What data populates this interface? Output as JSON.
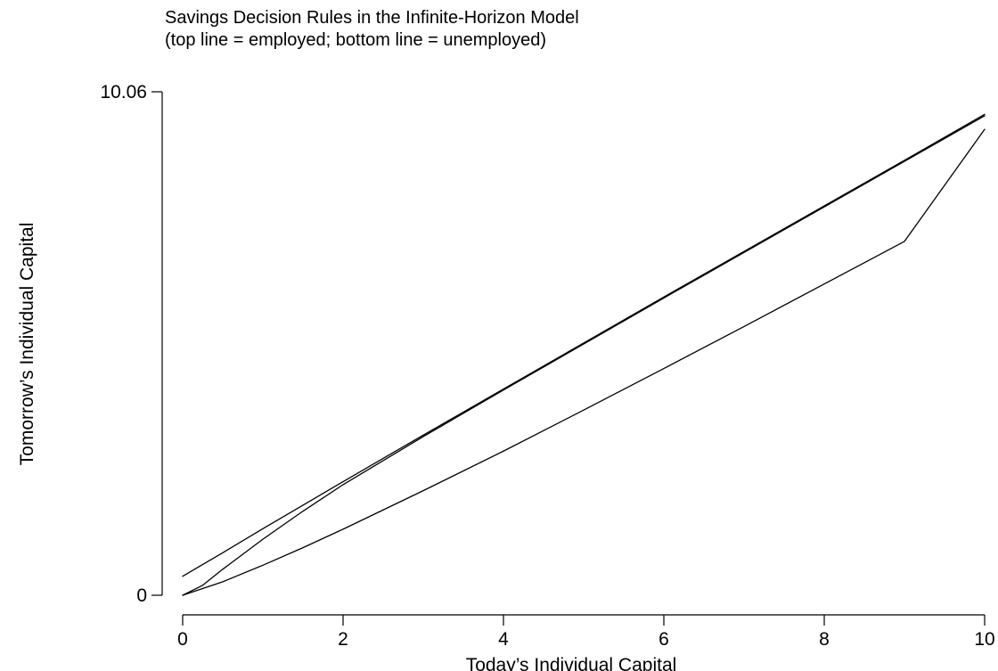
{
  "chart_data": {
    "type": "line",
    "title": "Savings Decision Rules in the Infinite-Horizon Model",
    "subtitle": "(top line = employed; bottom line = unemployed)",
    "xlabel": "Today’s Individual Capital",
    "ylabel": "Tomorrow’s Individual Capital",
    "xlim": [
      0,
      10
    ],
    "ylim": [
      0,
      10.06
    ],
    "x_ticks": [
      0,
      2,
      4,
      6,
      8,
      10
    ],
    "x_tick_labels": [
      "0",
      "2",
      "4",
      "6",
      "8",
      "10"
    ],
    "y_ticks": [
      0,
      10.06
    ],
    "y_tick_labels": [
      "0",
      "10.06"
    ],
    "grid": false,
    "legend": "none",
    "line_color": "#000000",
    "series": [
      {
        "x": [
          0,
          0.5,
          1,
          1.5,
          2,
          3,
          4,
          5,
          6,
          7,
          8,
          9,
          10
        ],
        "y": [
          0.38,
          0.85,
          1.33,
          1.8,
          2.27,
          3.2,
          4.12,
          5.04,
          5.96,
          6.87,
          7.78,
          8.69,
          9.61
        ]
      },
      {
        "x": [
          0,
          0.25,
          0.5,
          1,
          1.5,
          2,
          3,
          4,
          5,
          6,
          7,
          8,
          9,
          10
        ],
        "y": [
          0.0,
          0.2,
          0.52,
          1.12,
          1.68,
          2.21,
          3.17,
          4.1,
          5.02,
          5.94,
          6.85,
          7.76,
          8.67,
          9.58
        ]
      },
      {
        "x": [
          0,
          0.5,
          1,
          1.5,
          2,
          3,
          4,
          5,
          6,
          7,
          8,
          9,
          10
        ],
        "y": [
          0.0,
          0.27,
          0.6,
          0.95,
          1.32,
          2.09,
          2.88,
          3.7,
          4.53,
          5.37,
          6.22,
          7.07,
          9.31
        ]
      }
    ]
  }
}
